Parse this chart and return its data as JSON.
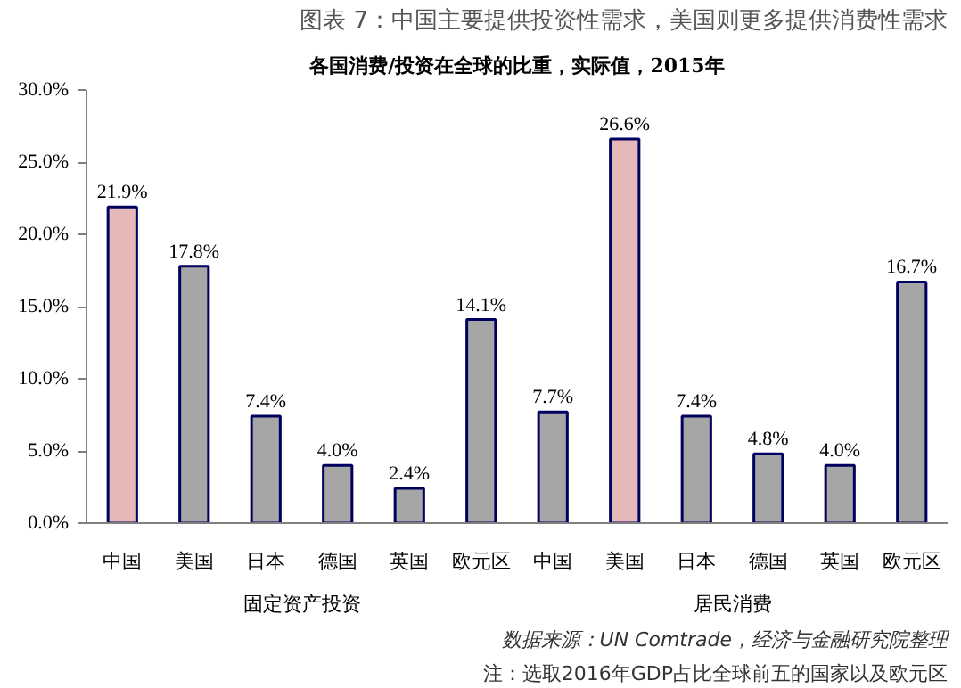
{
  "chart_data": {
    "type": "bar",
    "title": "图表 7：中国主要提供投资性需求，美国则更多提供消费性需求",
    "subtitle": "各国消费/投资在全球的比重，实际值，2015年",
    "categories": [
      "中国",
      "美国",
      "日本",
      "德国",
      "英国",
      "欧元区",
      "中国",
      "美国",
      "日本",
      "德国",
      "英国",
      "欧元区"
    ],
    "values": [
      21.9,
      17.8,
      7.4,
      4.0,
      2.4,
      14.1,
      7.7,
      26.6,
      7.4,
      4.8,
      4.0,
      16.7
    ],
    "colors": [
      "#e6b9b8",
      "#a6a6a6",
      "#a6a6a6",
      "#a6a6a6",
      "#a6a6a6",
      "#a6a6a6",
      "#a6a6a6",
      "#e6b9b8",
      "#a6a6a6",
      "#a6a6a6",
      "#a6a6a6",
      "#a6a6a6"
    ],
    "value_labels": [
      "21.9%",
      "17.8%",
      "7.4%",
      "4.0%",
      "2.4%",
      "14.1%",
      "7.7%",
      "26.6%",
      "7.4%",
      "4.8%",
      "4.0%",
      "16.7%"
    ],
    "ylim": [
      0,
      30
    ],
    "yticks": [
      {
        "value": 0,
        "label": "0.0%"
      },
      {
        "value": 5,
        "label": "5.0%"
      },
      {
        "value": 10,
        "label": "10.0%"
      },
      {
        "value": 15,
        "label": "15.0%"
      },
      {
        "value": 20,
        "label": "20.0%"
      },
      {
        "value": 25,
        "label": "25.0%"
      },
      {
        "value": 30,
        "label": "30.0%"
      }
    ],
    "grid": false,
    "annotations": [
      "固定资产投资",
      "居民消费",
      "注：选取2016年GDP占比全球前五的国家以及欧元区",
      "数据来源：UN Comtrade，经济与金融研究院整理"
    ]
  }
}
